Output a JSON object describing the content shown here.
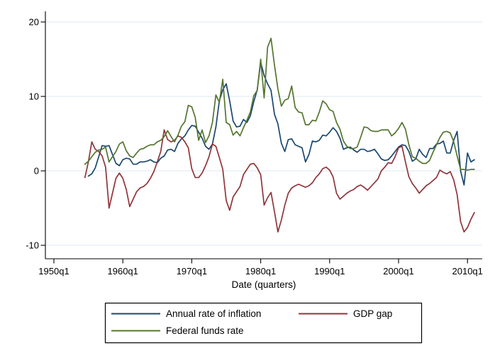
{
  "chart_data": {
    "type": "line",
    "title": "",
    "xlabel": "Date (quarters)",
    "ylabel": "",
    "x_start": 1954.5,
    "x_step": 0.5,
    "xlim": [
      1948.8,
      2012.2
    ],
    "ylim": [
      -11.9,
      21.5
    ],
    "grid": "horizontal",
    "grid_color": "#e4eef5",
    "axis_color": "#000000",
    "x_ticks": [
      {
        "value": 1950,
        "label": "1950q1"
      },
      {
        "value": 1960,
        "label": "1960q1"
      },
      {
        "value": 1970,
        "label": "1970q1"
      },
      {
        "value": 1980,
        "label": "1980q1"
      },
      {
        "value": 1990,
        "label": "1990q1"
      },
      {
        "value": 2000,
        "label": "2000q1"
      },
      {
        "value": 2010,
        "label": "2010q1"
      }
    ],
    "y_ticks": [
      {
        "value": 20,
        "label": "20"
      },
      {
        "value": 10,
        "label": "10"
      },
      {
        "value": 0,
        "label": "0"
      },
      {
        "value": -10,
        "label": "-10"
      }
    ],
    "legend": {
      "position": "bottom",
      "columns": 2,
      "border": true
    },
    "series": [
      {
        "name": "Annual rate of inflation",
        "color": "#1a476f",
        "values": [
          null,
          -0.7,
          -0.4,
          0.4,
          1.9,
          3.4,
          3.3,
          3.4,
          2.2,
          1.0,
          0.7,
          1.5,
          1.7,
          1.6,
          0.9,
          0.9,
          1.2,
          1.2,
          1.3,
          1.5,
          1.2,
          1.1,
          1.7,
          2.0,
          2.8,
          2.9,
          2.6,
          3.7,
          4.3,
          4.7,
          5.5,
          6.1,
          6.0,
          5.2,
          4.4,
          3.3,
          2.9,
          3.6,
          5.9,
          9.4,
          10.9,
          11.7,
          9.4,
          6.7,
          5.9,
          6.0,
          6.9,
          6.5,
          7.4,
          9.3,
          10.9,
          14.6,
          12.8,
          11.7,
          10.8,
          7.6,
          6.3,
          3.7,
          2.6,
          4.2,
          4.3,
          3.5,
          3.3,
          3.1,
          1.2,
          2.2,
          4.0,
          3.9,
          4.1,
          4.8,
          4.7,
          5.2,
          5.8,
          5.3,
          4.4,
          2.9,
          3.1,
          3.2,
          2.8,
          2.5,
          2.9,
          2.9,
          2.6,
          2.7,
          2.9,
          2.3,
          1.6,
          1.4,
          1.5,
          2.0,
          2.6,
          3.2,
          3.5,
          3.4,
          2.6,
          1.3,
          1.6,
          2.9,
          2.2,
          1.8,
          3.0,
          3.0,
          3.6,
          3.7,
          4.0,
          2.4,
          2.4,
          4.1,
          5.3,
          0.0,
          -1.9,
          2.4,
          1.2,
          1.5
        ]
      },
      {
        "name": "Federal funds rate",
        "color": "#55752f",
        "values": [
          0.9,
          1.3,
          1.9,
          2.5,
          2.8,
          2.9,
          3.2,
          1.2,
          1.9,
          2.6,
          3.6,
          3.9,
          2.7,
          2.0,
          1.8,
          2.4,
          2.9,
          3.0,
          3.3,
          3.5,
          3.5,
          3.9,
          4.1,
          4.6,
          5.4,
          4.6,
          3.9,
          4.8,
          6.0,
          6.6,
          8.8,
          8.6,
          7.2,
          4.1,
          5.5,
          3.8,
          4.7,
          6.5,
          10.2,
          9.2,
          12.3,
          6.5,
          6.2,
          4.8,
          5.3,
          4.7,
          5.8,
          6.8,
          7.9,
          10.1,
          10.8,
          15.0,
          9.8,
          16.6,
          17.8,
          14.2,
          11.0,
          8.7,
          9.5,
          9.7,
          11.4,
          8.5,
          7.9,
          7.8,
          6.2,
          6.2,
          6.8,
          6.7,
          7.9,
          9.4,
          9.0,
          8.2,
          8.0,
          6.5,
          5.6,
          4.0,
          3.3,
          3.0,
          3.0,
          3.2,
          4.5,
          5.9,
          5.8,
          5.4,
          5.3,
          5.3,
          5.5,
          5.5,
          5.5,
          4.7,
          5.1,
          5.7,
          6.5,
          5.6,
          3.5,
          1.9,
          1.7,
          1.3,
          1.0,
          1.0,
          1.4,
          2.5,
          3.5,
          4.5,
          5.2,
          5.3,
          5.1,
          3.9,
          2.0,
          0.2,
          0.2,
          0.1,
          0.2,
          0.2
        ]
      },
      {
        "name": "GDP gap",
        "color": "#90353b",
        "values": [
          -0.9,
          1.2,
          3.9,
          2.9,
          2.6,
          2.0,
          0.5,
          -5.0,
          -3.0,
          -1.0,
          -0.3,
          -1.0,
          -2.5,
          -4.8,
          -3.8,
          -2.8,
          -2.3,
          -2.1,
          -1.7,
          -1.0,
          -0.1,
          1.2,
          2.6,
          5.5,
          4.2,
          3.9,
          4.1,
          4.7,
          4.5,
          3.9,
          3.1,
          0.3,
          -0.9,
          -0.9,
          -0.3,
          0.7,
          1.9,
          3.6,
          3.3,
          1.8,
          0.2,
          -4.0,
          -5.3,
          -3.5,
          -2.8,
          -2.1,
          -0.5,
          0.2,
          0.9,
          1.0,
          0.4,
          -0.5,
          -4.6,
          -3.6,
          -2.9,
          -5.5,
          -8.2,
          -6.6,
          -4.6,
          -3.0,
          -2.3,
          -2.0,
          -1.8,
          -2.0,
          -2.2,
          -2.0,
          -1.6,
          -0.9,
          -0.4,
          0.3,
          0.5,
          0.1,
          -0.8,
          -3.0,
          -3.8,
          -3.4,
          -3.0,
          -2.7,
          -2.5,
          -2.1,
          -1.9,
          -2.2,
          -2.6,
          -2.1,
          -1.6,
          -1.1,
          0.0,
          0.5,
          1.1,
          1.0,
          1.9,
          3.1,
          3.3,
          1.2,
          -0.8,
          -1.7,
          -2.3,
          -3.0,
          -2.5,
          -2.0,
          -1.7,
          -1.3,
          -0.9,
          0.1,
          -0.2,
          -0.4,
          -0.1,
          -1.2,
          -3.2,
          -6.8,
          -8.2,
          -7.6,
          -6.5,
          -5.6
        ]
      }
    ]
  }
}
